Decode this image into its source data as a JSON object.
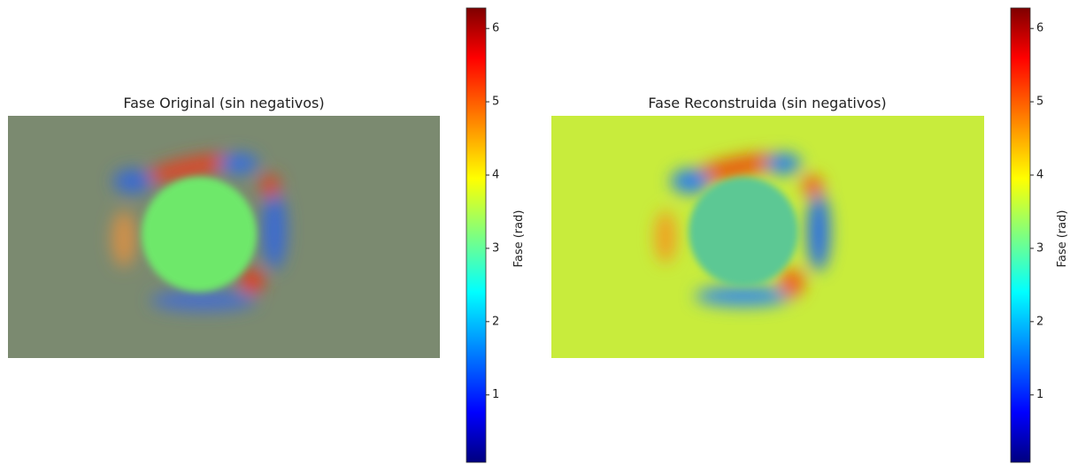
{
  "chart_data": [
    {
      "type": "heatmap",
      "title": "Fase Original (sin negativos)",
      "colorbar_label": "Fase (rad)",
      "colormap": "jet",
      "clim": [
        0.08,
        6.28
      ],
      "cticks": [
        1,
        2,
        3,
        4,
        5,
        6
      ]
    },
    {
      "type": "heatmap",
      "title": "Fase Reconstruida (sin negativos)",
      "colorbar_label": "Fase (rad)",
      "colormap": "jet",
      "clim": [
        0.08,
        6.28
      ],
      "cticks": [
        1,
        2,
        3,
        4,
        5,
        6
      ]
    }
  ]
}
